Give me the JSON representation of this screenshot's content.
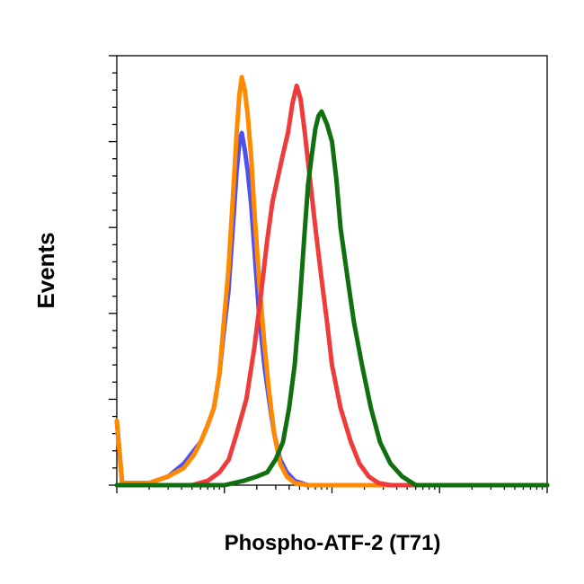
{
  "chart_data": {
    "type": "line",
    "title": "",
    "xlabel": "Phospho-ATF-2 (T71)",
    "ylabel": "Events",
    "x_scale": "log",
    "xlim": [
      0.1,
      1000
    ],
    "ylim": [
      0,
      100
    ],
    "x_major_ticks": [
      0.1,
      1,
      10,
      100,
      1000
    ],
    "y_major_ticks": [
      0,
      20,
      40,
      60,
      80,
      100
    ],
    "grid": false,
    "legend": "none",
    "series": [
      {
        "color": "#5050f0",
        "x": [
          0.1,
          0.112,
          0.126,
          0.2,
          0.3,
          0.42,
          0.52,
          0.6,
          0.7,
          0.8,
          0.9,
          0.98,
          1.09,
          1.2,
          1.3,
          1.38,
          1.45,
          1.55,
          1.65,
          1.78,
          1.9,
          2.1,
          2.35,
          2.6,
          2.9,
          3.3,
          3.8,
          4.5,
          6,
          10,
          1000
        ],
        "y": [
          15,
          0.5,
          0.5,
          0.5,
          2,
          5,
          8,
          10,
          14,
          18,
          26,
          35,
          45,
          60,
          73,
          80,
          82,
          78,
          73,
          65,
          55,
          40,
          28,
          20,
          12,
          6,
          3,
          1,
          0,
          0,
          0
        ]
      },
      {
        "color": "#ff8a00",
        "x": [
          0.1,
          0.112,
          0.126,
          0.2,
          0.3,
          0.42,
          0.52,
          0.6,
          0.7,
          0.8,
          0.9,
          0.98,
          1.09,
          1.2,
          1.3,
          1.38,
          1.45,
          1.55,
          1.65,
          1.78,
          1.9,
          2.1,
          2.35,
          2.6,
          2.9,
          3.3,
          3.8,
          4.5,
          6,
          10,
          1000
        ],
        "y": [
          15,
          0.5,
          0.5,
          0.5,
          2,
          4,
          7,
          10,
          14,
          18,
          26,
          37,
          50,
          67,
          82,
          91,
          95,
          92,
          86,
          76,
          64,
          48,
          33,
          22,
          12,
          5,
          2,
          0.5,
          0,
          0,
          0
        ]
      },
      {
        "color": "#ee3b3b",
        "x": [
          0.1,
          0.5,
          0.7,
          0.9,
          1.1,
          1.3,
          1.6,
          1.9,
          2.2,
          2.5,
          2.8,
          3.1,
          3.5,
          3.9,
          4.3,
          4.7,
          5.1,
          5.6,
          6.2,
          7,
          8,
          9,
          10,
          12,
          15,
          18,
          22,
          27,
          35,
          50,
          1000
        ],
        "y": [
          0,
          0,
          1,
          3,
          6,
          12,
          20,
          32,
          45,
          57,
          66,
          71,
          77,
          82,
          89,
          93,
          90,
          82,
          72,
          60,
          48,
          38,
          28,
          18,
          10,
          5,
          2,
          0.5,
          0,
          0,
          0
        ]
      },
      {
        "color": "#107010",
        "x": [
          0.1,
          1,
          1.5,
          2,
          2.5,
          3,
          3.5,
          4,
          4.5,
          5,
          5.5,
          6,
          6.5,
          7,
          7.5,
          8,
          9,
          10,
          11,
          12,
          14,
          16,
          19,
          23,
          28,
          35,
          45,
          60,
          1000
        ],
        "y": [
          0,
          0,
          1,
          2,
          3,
          6,
          10,
          18,
          28,
          42,
          57,
          70,
          77,
          83,
          86,
          87,
          84,
          80,
          71,
          60,
          48,
          38,
          28,
          18,
          10,
          5,
          2,
          0,
          0
        ]
      }
    ]
  }
}
